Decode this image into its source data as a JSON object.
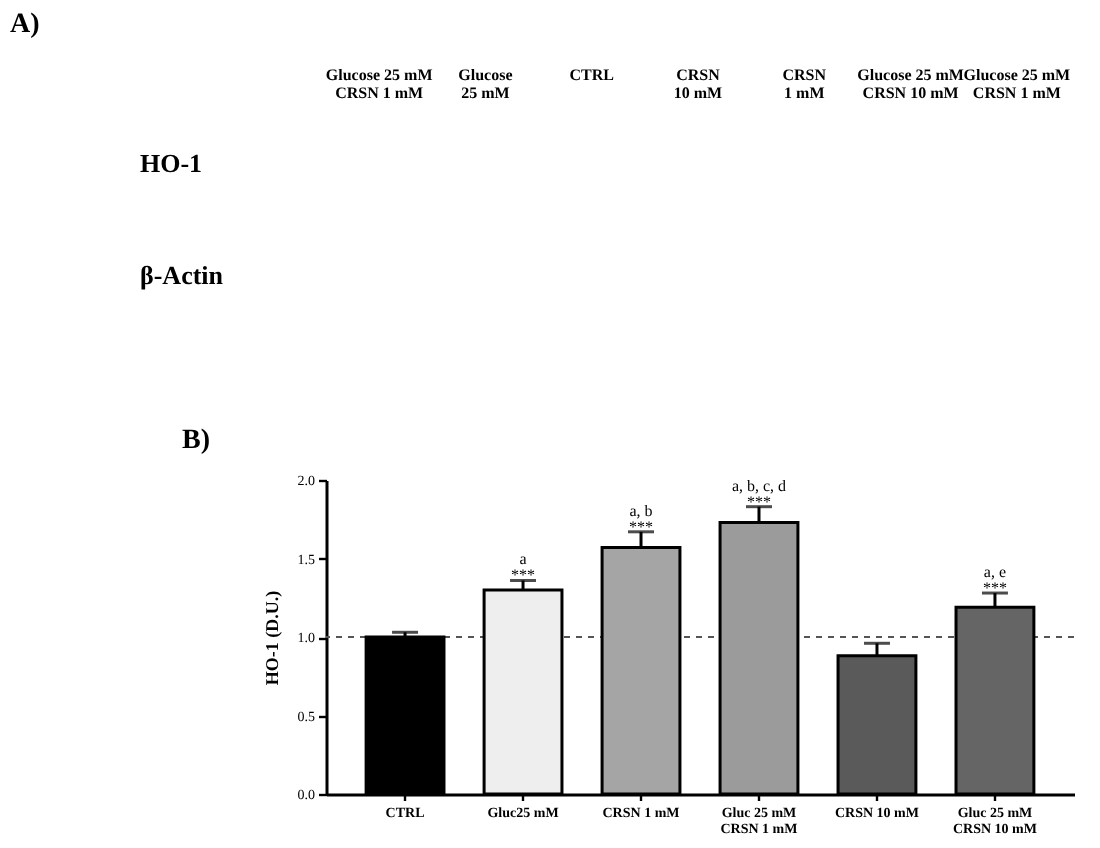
{
  "chart_data": [
    {
      "type": "other",
      "title": "A)",
      "categories": [
        "Glucose 25 mM\nCRSN 1 mM",
        "Glucose\n25 mM",
        "CTRL",
        "CRSN\n10 mM",
        "CRSN\n1 mM",
        "Glucose 25 mM\nCRSN 10 mM",
        "Glucose 25 mM\nCRSN 1 mM"
      ],
      "y_categories": [
        "HO-1",
        "β-Actin"
      ]
    },
    {
      "type": "bar",
      "title": "B)",
      "ylabel": "HO-1 (D.U.)",
      "categories": [
        "CTRL",
        "Gluc25 mM",
        "CRSN 1 mM",
        "Gluc 25 mM\nCRSN 1 mM",
        "CRSN 10 mM",
        "Gluc 25 mM\nCRSN 10 mM"
      ],
      "values": [
        1.0,
        1.3,
        1.57,
        1.73,
        0.88,
        1.19
      ],
      "errors": [
        0.03,
        0.06,
        0.1,
        0.1,
        0.08,
        0.09
      ],
      "colors": [
        "#000000",
        "#eeeeee",
        "#a5a5a5",
        "#9b9b9b",
        "#5a5a5a",
        "#656565"
      ],
      "ylim": [
        0,
        2
      ],
      "yticks": [
        {
          "value": 0,
          "label": "0.0"
        },
        {
          "value": 0.5,
          "label": "0.5"
        },
        {
          "value": 1,
          "label": "1.0"
        },
        {
          "value": 1.5,
          "label": "1.5"
        },
        {
          "value": 2,
          "label": "2.0"
        }
      ],
      "ref_lines": [
        {
          "axis": "y",
          "value": 1,
          "line_style": "dashed",
          "color": "#555555"
        }
      ],
      "annotations": [
        {
          "text": "a\n***",
          "x": "Gluc25 mM",
          "y": 1.36
        },
        {
          "text": "a, b\n***",
          "x": "CRSN 1 mM",
          "y": 1.67
        },
        {
          "text": "a, b, c, d\n***",
          "x": "Gluc 25 mM\nCRSN 1 mM",
          "y": 1.83
        },
        {
          "text": "a, e\n***",
          "x": "Gluc 25 mM\nCRSN 10 mM",
          "y": 1.28
        }
      ]
    }
  ]
}
